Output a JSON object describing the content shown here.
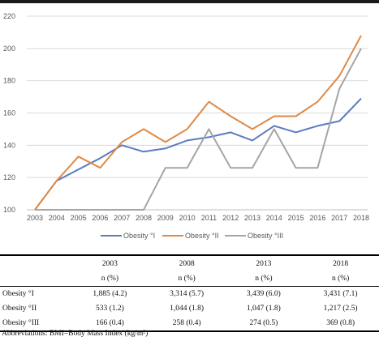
{
  "chart_data": {
    "type": "line",
    "x": [
      "2003",
      "2004",
      "2005",
      "2006",
      "2007",
      "2008",
      "2009",
      "2010",
      "2011",
      "2012",
      "2013",
      "2014",
      "2015",
      "2016",
      "2017",
      "2018"
    ],
    "ylim": [
      100,
      220
    ],
    "yticks": [
      "100",
      "120",
      "140",
      "160",
      "180",
      "200",
      "220"
    ],
    "grid": true,
    "legend_position": "bottom",
    "series": [
      {
        "name": "Obesity °I",
        "color": "#5b7bc0",
        "values": [
          100,
          118,
          125,
          132,
          140,
          136,
          138,
          143,
          145,
          148,
          143,
          152,
          148,
          152,
          155,
          169
        ]
      },
      {
        "name": "Obesity °II",
        "color": "#e08a45",
        "values": [
          100,
          118,
          133,
          126,
          142,
          150,
          142,
          150,
          167,
          158,
          150,
          158,
          158,
          167,
          183,
          208
        ]
      },
      {
        "name": "Obesity °III",
        "color": "#a5a5a5",
        "values": [
          100,
          100,
          100,
          100,
          100,
          100,
          126,
          126,
          150,
          126,
          126,
          150,
          126,
          126,
          175,
          200
        ]
      }
    ]
  },
  "table": {
    "years": [
      "2003",
      "2008",
      "2013",
      "2018"
    ],
    "unit": "n (%)",
    "rows": [
      {
        "label": "Obesity °I",
        "cells": [
          "1,885 (4.2)",
          "3,314 (5.7)",
          "3,439 (6.0)",
          "3,431 (7.1)"
        ]
      },
      {
        "label": "Obesity °II",
        "cells": [
          "533 (1.2)",
          "1,044 (1.8)",
          "1,047 (1.8)",
          "1,217 (2.5)"
        ]
      },
      {
        "label": "Obesity °III",
        "cells": [
          "166 (0.4)",
          "258 (0.4)",
          "274 (0.5)",
          "369 (0.8)"
        ]
      }
    ]
  },
  "footnote": "Abbreviations: BMI=Body Mass Index (kg/m²)"
}
